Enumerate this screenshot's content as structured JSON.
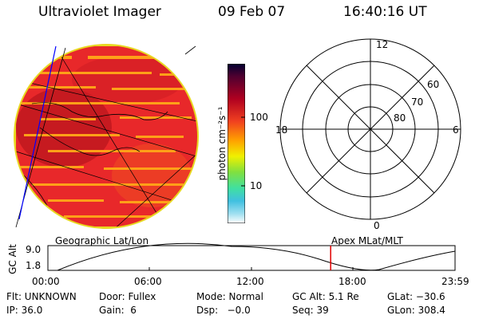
{
  "header": {
    "instrument": "Ultraviolet Imager",
    "date": "09 Feb 07",
    "time": "16:40:16 UT"
  },
  "colorbar": {
    "unit_label": "photon cm⁻²s⁻¹",
    "tick_labels": [
      "100",
      "10"
    ]
  },
  "polar_plot": {
    "clock_labels": [
      "12",
      "18",
      "6",
      "0"
    ],
    "latitude_labels": [
      "60",
      "70",
      "80"
    ]
  },
  "timeline": {
    "left_caption": "Geographic Lat/Lon",
    "right_caption": "Apex MLat/MLT",
    "y_axis_label": "GC Alt",
    "y_ticks": [
      "9.0",
      "1.8"
    ],
    "x_ticks": [
      "00:00",
      "06:00",
      "12:00",
      "18:00",
      "23:59"
    ],
    "current_time_hours": 16.67,
    "marker_color": "#e00000"
  },
  "footer": {
    "row1": [
      "Flt: UNKNOWN",
      "Door: Fullex",
      "Mode: Normal",
      "GC Alt: 5.1 Re",
      "GLat: −30.6"
    ],
    "row2": [
      "IP: 36.0",
      "Gain:  6",
      "Dsp:   −0.0",
      "Seq: 39",
      "GLon: 308.4"
    ]
  }
}
